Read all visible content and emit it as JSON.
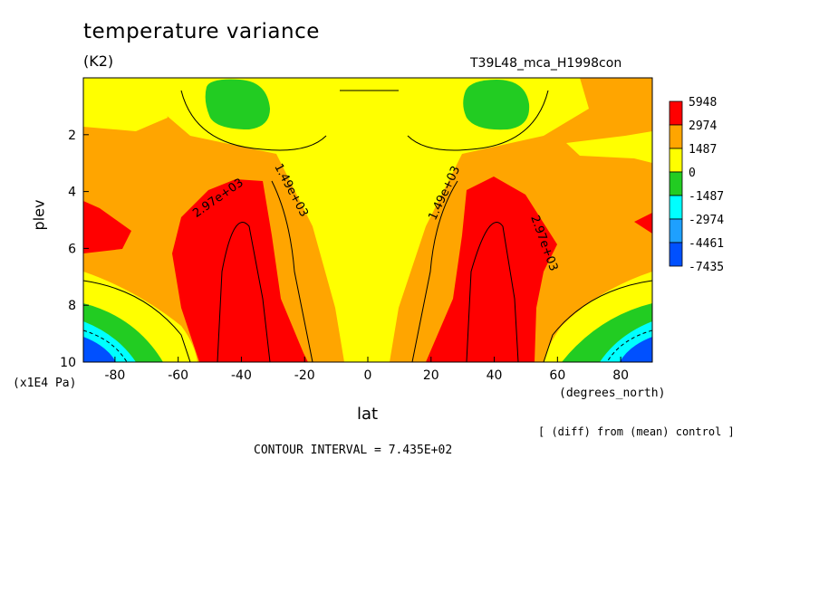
{
  "title": "temperature variance",
  "units": "(K2)",
  "run_name": "T39L48_mca_H1998con",
  "note": "[ (diff) from (mean) control ]",
  "contour_interval": "CONTOUR INTERVAL = 7.435E+02",
  "chart_data": {
    "type": "heatmap",
    "xlabel": "lat",
    "x_unit": "(degrees_north)",
    "ylabel": "plev",
    "y_unit": "(x1E4 Pa)",
    "xlim": [
      -90,
      90
    ],
    "ylim": [
      10,
      0
    ],
    "x_ticks": [
      -80,
      -60,
      -40,
      -20,
      0,
      20,
      40,
      60,
      80
    ],
    "y_ticks": [
      2,
      4,
      6,
      8,
      10
    ],
    "colorbar": {
      "levels": [
        5948,
        2974,
        1487,
        0,
        -1487,
        -2974,
        -4461,
        -7435
      ],
      "colors": [
        "#ff0000",
        "#ffa500",
        "#ffff00",
        "#22cc22",
        "#00ffff",
        "#1ea0ff",
        "#0050ff"
      ]
    },
    "contour_labels": [
      "2.97e+03",
      "1.49e+03",
      "1.49e+03",
      "2.97e+03"
    ],
    "regions": {
      "red_peaks": [
        {
          "lat": -40,
          "plev": 6.5,
          "value": 3500
        },
        {
          "lat": 40,
          "plev": 6.5,
          "value": 3500
        }
      ],
      "green_minima_upper": [
        {
          "lat": -40,
          "plev": 1,
          "value": -700
        },
        {
          "lat": 40,
          "plev": 1,
          "value": -700
        }
      ],
      "blue_minima_surface": [
        {
          "lat": -85,
          "plev": 10,
          "value": -7000
        },
        {
          "lat": 85,
          "plev": 10,
          "value": -7000
        }
      ]
    }
  }
}
